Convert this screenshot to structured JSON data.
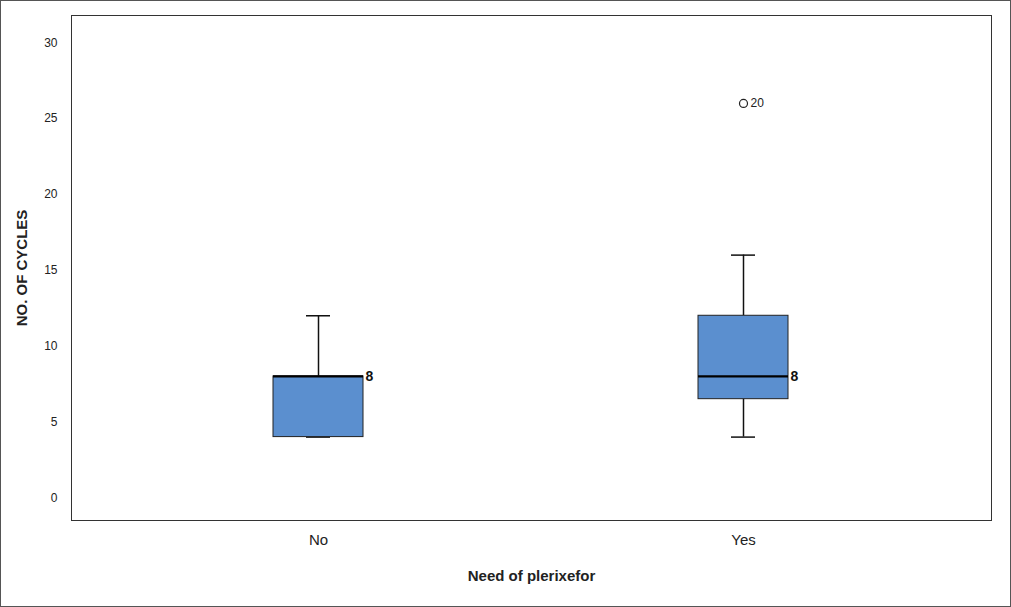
{
  "chart_data": {
    "type": "box",
    "x_label": "Need of plerixefor",
    "y_label": "NO. OF CYCLES",
    "categories": [
      "No",
      "Yes"
    ],
    "boxes": [
      {
        "min": 4,
        "q1": 4,
        "median": 8,
        "q3": 8,
        "max": 12,
        "outliers": [],
        "outlier_labels": []
      },
      {
        "min": 4,
        "q1": 6.5,
        "median": 8,
        "q3": 12,
        "max": 16,
        "outliers": [
          26
        ],
        "outlier_labels": [
          "20"
        ]
      }
    ],
    "color": "#5b8fcf",
    "data_labels": true,
    "ylim": [
      -1.5,
      31.8
    ],
    "yticks": [
      0,
      5,
      10,
      15,
      20,
      25,
      30
    ]
  }
}
